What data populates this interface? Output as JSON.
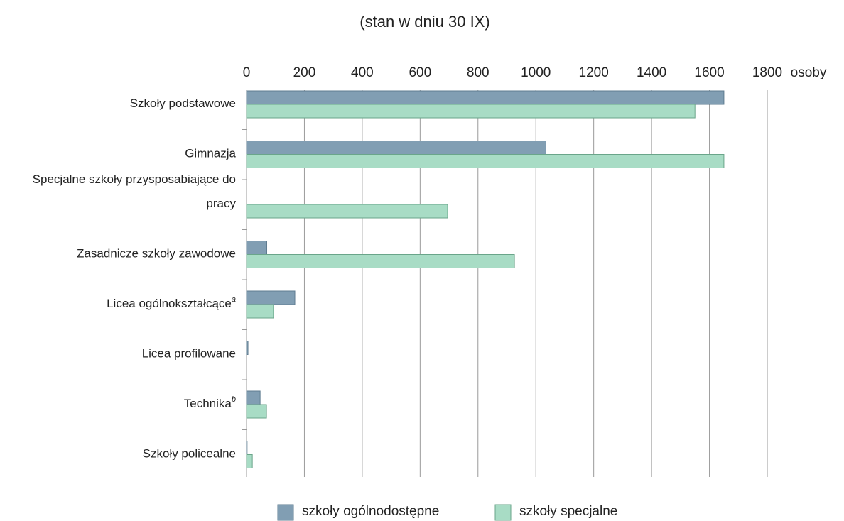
{
  "chart_data": {
    "type": "hbar",
    "title": "(stan w dniu 30 IX)",
    "x_unit": "osoby",
    "categories": [
      "Szkoły podstawowe",
      "Gimnazja",
      "Specjalne szkoły przysposabiające do pracy",
      "Zasadnicze szkoły zawodowe",
      "Licea ogólnokształcące",
      "Licea profilowane",
      "Technika",
      "Szkoły policealne"
    ],
    "category_notes": [
      null,
      null,
      null,
      null,
      "a",
      null,
      "b",
      null
    ],
    "series": [
      {
        "name": "szkoły ogólnodostępne",
        "color": "#819eb3",
        "values": [
          1650,
          1035,
          0,
          70,
          167,
          5,
          47,
          2
        ]
      },
      {
        "name": "szkoły specjalne",
        "color": "#a8dcc5",
        "values": [
          1550,
          1650,
          695,
          926,
          93,
          0,
          69,
          20
        ]
      }
    ],
    "xlim": [
      0,
      1800
    ],
    "xticks": [
      0,
      200,
      400,
      600,
      800,
      1000,
      1200,
      1400,
      1600,
      1800
    ],
    "grid": true,
    "legend": "bottom"
  }
}
